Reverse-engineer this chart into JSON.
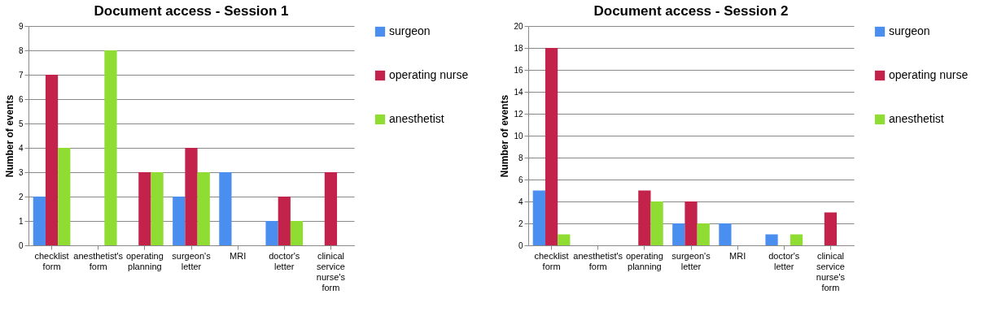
{
  "chart_data": [
    {
      "type": "bar",
      "title": "Document access - Session 1",
      "ylabel": "Number of events",
      "categories": [
        "checklist form",
        "anesthetist's form",
        "operating planning",
        "surgeon's letter",
        "MRI",
        "doctor's letter",
        "clinical service nurse's form"
      ],
      "series": [
        {
          "name": "surgeon",
          "color": "#4a8ff0",
          "values": [
            2,
            0,
            0,
            2,
            3,
            1,
            0
          ]
        },
        {
          "name": "operating nurse",
          "color": "#c3234a",
          "values": [
            7,
            0,
            3,
            4,
            0,
            2,
            3
          ]
        },
        {
          "name": "anesthetist",
          "color": "#8fdc32",
          "values": [
            4,
            8,
            3,
            3,
            0,
            1,
            0
          ]
        }
      ],
      "ylim": [
        0,
        9
      ],
      "yticks": [
        0,
        1,
        2,
        3,
        4,
        5,
        6,
        7,
        8,
        9
      ],
      "grid": "y",
      "legend": "right"
    },
    {
      "type": "bar",
      "title": "Document access - Session 2",
      "ylabel": "Number of events",
      "categories": [
        "checklist form",
        "anesthetist's form",
        "operating planning",
        "surgeon's letter",
        "MRI",
        "doctor's letter",
        "clinical service nurse's form"
      ],
      "series": [
        {
          "name": "surgeon",
          "color": "#4a8ff0",
          "values": [
            5,
            0,
            0,
            2,
            2,
            1,
            0
          ]
        },
        {
          "name": "operating nurse",
          "color": "#c3234a",
          "values": [
            18,
            0,
            5,
            4,
            0,
            0,
            3
          ]
        },
        {
          "name": "anesthetist",
          "color": "#8fdc32",
          "values": [
            1,
            0,
            4,
            2,
            0,
            1,
            0
          ]
        }
      ],
      "ylim": [
        0,
        20
      ],
      "yticks": [
        0,
        2,
        4,
        6,
        8,
        10,
        12,
        14,
        16,
        18,
        20
      ],
      "grid": "y",
      "legend": "right"
    }
  ]
}
